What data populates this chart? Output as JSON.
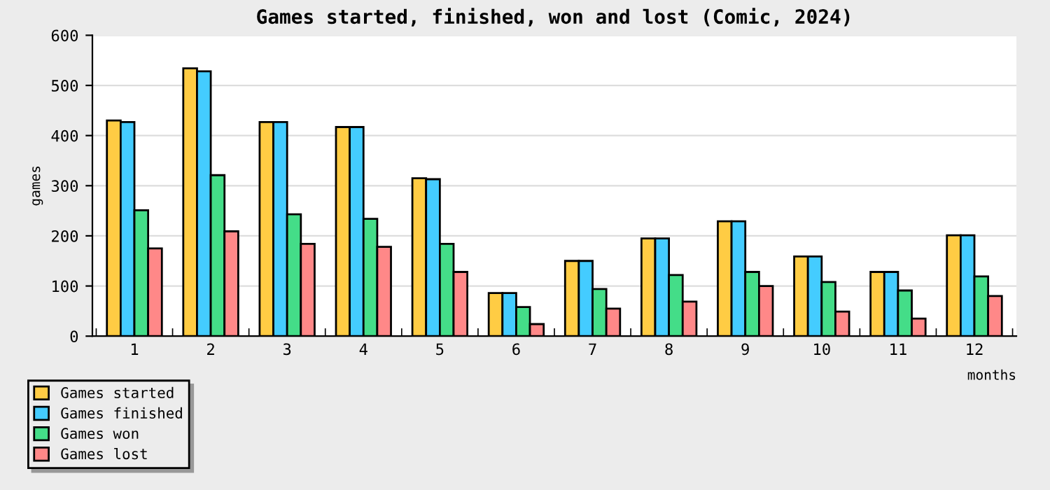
{
  "chart_data": {
    "type": "bar",
    "title": "Games started, finished, won and lost (Comic, 2024)",
    "xlabel": "months",
    "ylabel": "games",
    "categories": [
      "1",
      "2",
      "3",
      "4",
      "5",
      "6",
      "7",
      "8",
      "9",
      "10",
      "11",
      "12"
    ],
    "series": [
      {
        "name": "Games started",
        "color": "#ffcc44",
        "values": [
          430,
          534,
          427,
          417,
          315,
          86,
          150,
          195,
          229,
          159,
          128,
          201
        ]
      },
      {
        "name": "Games finished",
        "color": "#44ccff",
        "values": [
          427,
          528,
          427,
          417,
          313,
          86,
          150,
          195,
          229,
          159,
          128,
          201
        ]
      },
      {
        "name": "Games won",
        "color": "#44dd88",
        "values": [
          251,
          321,
          243,
          234,
          184,
          58,
          94,
          122,
          128,
          108,
          91,
          119
        ]
      },
      {
        "name": "Games lost",
        "color": "#ff8888",
        "values": [
          175,
          209,
          184,
          178,
          128,
          24,
          55,
          69,
          100,
          49,
          35,
          80
        ]
      }
    ],
    "ylim": [
      0,
      600
    ],
    "yticks": [
      0,
      100,
      200,
      300,
      400,
      500,
      600
    ],
    "grid": "y",
    "legend": "bottom left"
  }
}
